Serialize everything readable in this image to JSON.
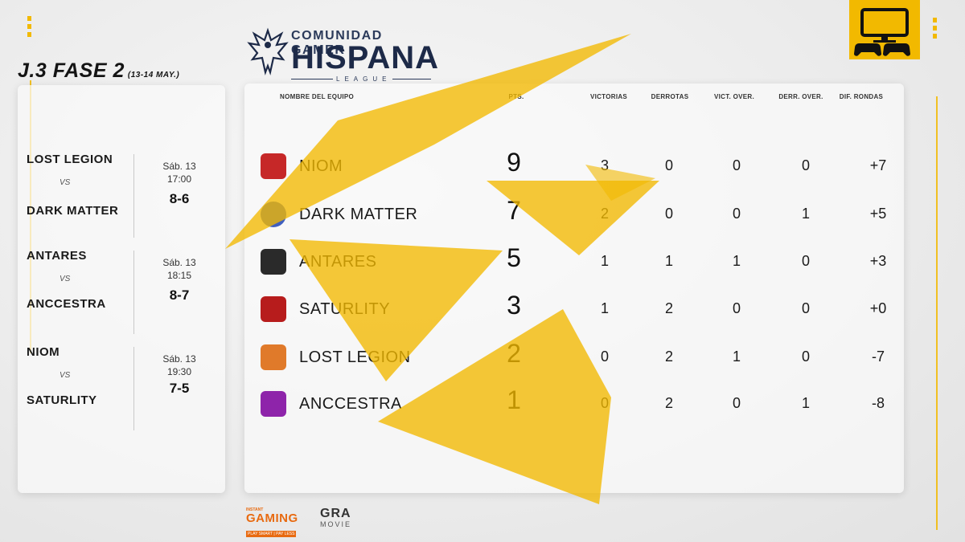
{
  "brand": {
    "line1": "COMUNIDAD GAMER",
    "line2": "HISPANA",
    "line3": "LEAGUE"
  },
  "round": {
    "title": "J.3 FASE 2",
    "dates": "(13-14 MAY.)"
  },
  "headers": {
    "team": "NOMBRE DEL EQUIPO",
    "pts": "PTS.",
    "wins": "VICTORIAS",
    "losses": "DERROTAS",
    "ot_wins": "VICT. OVER.",
    "ot_losses": "DERR. OVER.",
    "diff": "DIF. RONDAS"
  },
  "matches": [
    {
      "home": "LOST LEGION",
      "vs": "VS",
      "away": "DARK MATTER",
      "day": "Sáb. 13",
      "time": "17:00",
      "score": "8-6"
    },
    {
      "home": "ANTARES",
      "vs": "VS",
      "away": "ANCCESTRA",
      "day": "Sáb. 13",
      "time": "18:15",
      "score": "8-7"
    },
    {
      "home": "NIOM",
      "vs": "VS",
      "away": "SATURLITY",
      "day": "Sáb. 13",
      "time": "19:30",
      "score": "7-5"
    }
  ],
  "standings": [
    {
      "team": "NIOM",
      "pts": "9",
      "wins": "3",
      "losses": "0",
      "ot_wins": "0",
      "ot_losses": "0",
      "diff": "+7",
      "badge_color": "#c62828",
      "badge_icon": "ninja-logo-icon"
    },
    {
      "team": "DARK MATTER",
      "pts": "7",
      "wins": "2",
      "losses": "0",
      "ot_wins": "0",
      "ot_losses": "1",
      "diff": "+5",
      "badge_color": "#3f5fbf",
      "badge_icon": "spiral-logo-icon"
    },
    {
      "team": "ANTARES",
      "pts": "5",
      "wins": "1",
      "losses": "1",
      "ot_wins": "1",
      "ot_losses": "0",
      "diff": "+3",
      "badge_color": "#2a2a2a",
      "badge_icon": "beast-logo-icon"
    },
    {
      "team": "SATURLITY",
      "pts": "3",
      "wins": "1",
      "losses": "2",
      "ot_wins": "0",
      "ot_losses": "0",
      "diff": "+0",
      "badge_color": "#b71c1c",
      "badge_icon": "warrior-logo-icon"
    },
    {
      "team": "LOST LEGION",
      "pts": "2",
      "wins": "0",
      "losses": "2",
      "ot_wins": "1",
      "ot_losses": "0",
      "diff": "-7",
      "badge_color": "#e07a2a",
      "badge_icon": "fox-logo-icon"
    },
    {
      "team": "ANCCESTRA",
      "pts": "1",
      "wins": "0",
      "losses": "2",
      "ot_wins": "0",
      "ot_losses": "1",
      "diff": "-8",
      "badge_color": "#8e24aa",
      "badge_icon": "skull-logo-icon"
    }
  ],
  "sponsors": {
    "ig_top": "INSTANT",
    "ig_main": "GAMING",
    "ig_tag": "PLAY SMART | PAY LESS",
    "gra_main": "GRA",
    "gra_sub": "MOVIE"
  },
  "colors": {
    "accent": "#f2b900",
    "navy": "#1d2a48",
    "orange": "#e86a10"
  }
}
